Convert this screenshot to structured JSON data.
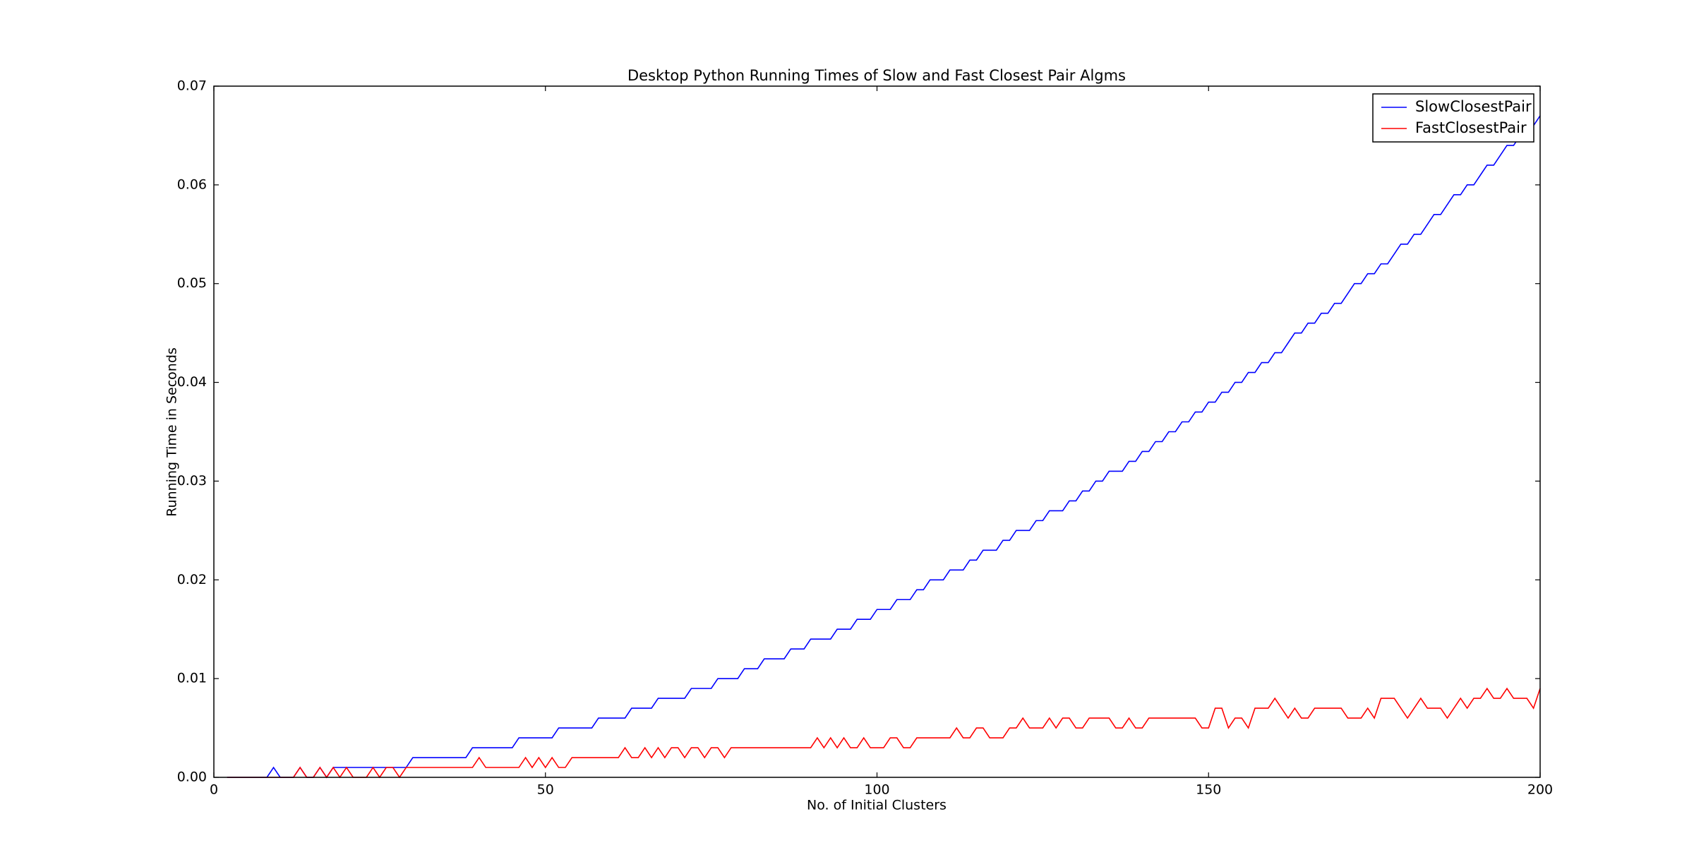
{
  "chart_data": {
    "type": "line",
    "title": "Desktop Python Running Times of Slow and Fast Closest Pair Algms",
    "x_label": "No. of Initial Clusters",
    "y_label": "Running Time in Seconds",
    "x": [
      2,
      3,
      4,
      5,
      6,
      7,
      8,
      9,
      10,
      11,
      12,
      13,
      14,
      15,
      16,
      17,
      18,
      19,
      20,
      21,
      22,
      23,
      24,
      25,
      26,
      27,
      28,
      29,
      30,
      31,
      32,
      33,
      34,
      35,
      36,
      37,
      38,
      39,
      40,
      41,
      42,
      43,
      44,
      45,
      46,
      47,
      48,
      49,
      50,
      51,
      52,
      53,
      54,
      55,
      56,
      57,
      58,
      59,
      60,
      61,
      62,
      63,
      64,
      65,
      66,
      67,
      68,
      69,
      70,
      71,
      72,
      73,
      74,
      75,
      76,
      77,
      78,
      79,
      80,
      81,
      82,
      83,
      84,
      85,
      86,
      87,
      88,
      89,
      90,
      91,
      92,
      93,
      94,
      95,
      96,
      97,
      98,
      99,
      100,
      101,
      102,
      103,
      104,
      105,
      106,
      107,
      108,
      109,
      110,
      111,
      112,
      113,
      114,
      115,
      116,
      117,
      118,
      119,
      120,
      121,
      122,
      123,
      124,
      125,
      126,
      127,
      128,
      129,
      130,
      131,
      132,
      133,
      134,
      135,
      136,
      137,
      138,
      139,
      140,
      141,
      142,
      143,
      144,
      145,
      146,
      147,
      148,
      149,
      150,
      151,
      152,
      153,
      154,
      155,
      156,
      157,
      158,
      159,
      160,
      161,
      162,
      163,
      164,
      165,
      166,
      167,
      168,
      169,
      170,
      171,
      172,
      173,
      174,
      175,
      176,
      177,
      178,
      179,
      180,
      181,
      182,
      183,
      184,
      185,
      186,
      187,
      188,
      189,
      190,
      191,
      192,
      193,
      194,
      195,
      196,
      197,
      198,
      199,
      200
    ],
    "series": [
      {
        "name": "SlowClosestPair",
        "color": "#0000ff",
        "values": [
          0,
          0,
          0,
          0,
          0,
          0,
          0,
          0.001,
          0,
          0,
          0,
          0.001,
          0,
          0,
          0.001,
          0,
          0.001,
          0.001,
          0.001,
          0.001,
          0.001,
          0.001,
          0.001,
          0.001,
          0.001,
          0.001,
          0.001,
          0.001,
          0.002,
          0.002,
          0.002,
          0.002,
          0.002,
          0.002,
          0.002,
          0.002,
          0.002,
          0.003,
          0.003,
          0.003,
          0.003,
          0.003,
          0.003,
          0.003,
          0.004,
          0.004,
          0.004,
          0.004,
          0.004,
          0.004,
          0.005,
          0.005,
          0.005,
          0.005,
          0.005,
          0.005,
          0.006,
          0.006,
          0.006,
          0.006,
          0.006,
          0.007,
          0.007,
          0.007,
          0.007,
          0.008,
          0.008,
          0.008,
          0.008,
          0.008,
          0.009,
          0.009,
          0.009,
          0.009,
          0.01,
          0.01,
          0.01,
          0.01,
          0.011,
          0.011,
          0.011,
          0.012,
          0.012,
          0.012,
          0.012,
          0.013,
          0.013,
          0.013,
          0.014,
          0.014,
          0.014,
          0.014,
          0.015,
          0.015,
          0.015,
          0.016,
          0.016,
          0.016,
          0.017,
          0.017,
          0.017,
          0.018,
          0.018,
          0.018,
          0.019,
          0.019,
          0.02,
          0.02,
          0.02,
          0.021,
          0.021,
          0.021,
          0.022,
          0.022,
          0.023,
          0.023,
          0.023,
          0.024,
          0.024,
          0.025,
          0.025,
          0.025,
          0.026,
          0.026,
          0.027,
          0.027,
          0.027,
          0.028,
          0.028,
          0.029,
          0.029,
          0.03,
          0.03,
          0.031,
          0.031,
          0.031,
          0.032,
          0.032,
          0.033,
          0.033,
          0.034,
          0.034,
          0.035,
          0.035,
          0.036,
          0.036,
          0.037,
          0.037,
          0.038,
          0.038,
          0.039,
          0.039,
          0.04,
          0.04,
          0.041,
          0.041,
          0.042,
          0.042,
          0.043,
          0.043,
          0.044,
          0.045,
          0.045,
          0.046,
          0.046,
          0.047,
          0.047,
          0.048,
          0.048,
          0.049,
          0.05,
          0.05,
          0.051,
          0.051,
          0.052,
          0.052,
          0.053,
          0.054,
          0.054,
          0.055,
          0.055,
          0.056,
          0.057,
          0.057,
          0.058,
          0.059,
          0.059,
          0.06,
          0.06,
          0.061,
          0.062,
          0.062,
          0.063,
          0.064,
          0.064,
          0.065,
          0.066,
          0.066,
          0.067
        ]
      },
      {
        "name": "FastClosestPair",
        "color": "#ff0000",
        "values": [
          0,
          0,
          0,
          0,
          0,
          0,
          0,
          0,
          0,
          0,
          0,
          0.001,
          0,
          0,
          0.001,
          0,
          0.001,
          0,
          0.001,
          0,
          0,
          0,
          0.001,
          0,
          0.001,
          0.001,
          0,
          0.001,
          0.001,
          0.001,
          0.001,
          0.001,
          0.001,
          0.001,
          0.001,
          0.001,
          0.001,
          0.001,
          0.002,
          0.001,
          0.001,
          0.001,
          0.001,
          0.001,
          0.001,
          0.002,
          0.001,
          0.002,
          0.001,
          0.002,
          0.001,
          0.001,
          0.002,
          0.002,
          0.002,
          0.002,
          0.002,
          0.002,
          0.002,
          0.002,
          0.003,
          0.002,
          0.002,
          0.003,
          0.002,
          0.003,
          0.002,
          0.003,
          0.003,
          0.002,
          0.003,
          0.003,
          0.002,
          0.003,
          0.003,
          0.002,
          0.003,
          0.003,
          0.003,
          0.003,
          0.003,
          0.003,
          0.003,
          0.003,
          0.003,
          0.003,
          0.003,
          0.003,
          0.003,
          0.004,
          0.003,
          0.004,
          0.003,
          0.004,
          0.003,
          0.003,
          0.004,
          0.003,
          0.003,
          0.003,
          0.004,
          0.004,
          0.003,
          0.003,
          0.004,
          0.004,
          0.004,
          0.004,
          0.004,
          0.004,
          0.005,
          0.004,
          0.004,
          0.005,
          0.005,
          0.004,
          0.004,
          0.004,
          0.005,
          0.005,
          0.006,
          0.005,
          0.005,
          0.005,
          0.006,
          0.005,
          0.006,
          0.006,
          0.005,
          0.005,
          0.006,
          0.006,
          0.006,
          0.006,
          0.005,
          0.005,
          0.006,
          0.005,
          0.005,
          0.006,
          0.006,
          0.006,
          0.006,
          0.006,
          0.006,
          0.006,
          0.006,
          0.005,
          0.005,
          0.007,
          0.007,
          0.005,
          0.006,
          0.006,
          0.005,
          0.007,
          0.007,
          0.007,
          0.008,
          0.007,
          0.006,
          0.007,
          0.006,
          0.006,
          0.007,
          0.007,
          0.007,
          0.007,
          0.007,
          0.006,
          0.006,
          0.006,
          0.007,
          0.006,
          0.008,
          0.008,
          0.008,
          0.007,
          0.006,
          0.007,
          0.008,
          0.007,
          0.007,
          0.007,
          0.006,
          0.007,
          0.008,
          0.007,
          0.008,
          0.008,
          0.009,
          0.008,
          0.008,
          0.009,
          0.008,
          0.008,
          0.008,
          0.007,
          0.009
        ]
      }
    ],
    "xlim": [
      0,
      200
    ],
    "xticks": [
      0,
      50,
      100,
      150,
      200
    ],
    "ylim": [
      0,
      0.07
    ],
    "yticks": [
      {
        "value": 0,
        "label": "0.00"
      },
      {
        "value": 0.01,
        "label": "0.01"
      },
      {
        "value": 0.02,
        "label": "0.02"
      },
      {
        "value": 0.03,
        "label": "0.03"
      },
      {
        "value": 0.04,
        "label": "0.04"
      },
      {
        "value": 0.05,
        "label": "0.05"
      },
      {
        "value": 0.06,
        "label": "0.06"
      },
      {
        "value": 0.07,
        "label": "0.07"
      }
    ],
    "legend": "upper right",
    "grid": false
  }
}
